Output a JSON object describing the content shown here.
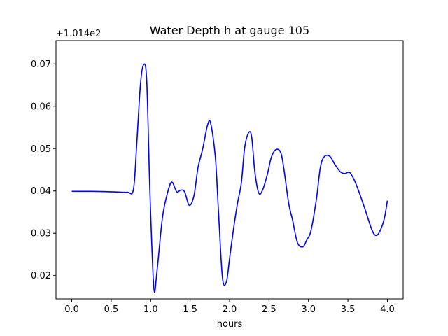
{
  "chart_data": {
    "type": "line",
    "title": "Water Depth h at gauge 105",
    "xlabel": "hours",
    "ylabel": "",
    "y_offset_label": "+1.014e2",
    "xlim": [
      -0.2,
      4.2
    ],
    "ylim": [
      0.0145,
      0.0755
    ],
    "xticks": [
      0.0,
      0.5,
      1.0,
      1.5,
      2.0,
      2.5,
      3.0,
      3.5,
      4.0
    ],
    "xtick_labels": [
      "0.0",
      "0.5",
      "1.0",
      "1.5",
      "2.0",
      "2.5",
      "3.0",
      "3.5",
      "4.0"
    ],
    "yticks": [
      0.02,
      0.03,
      0.04,
      0.05,
      0.06,
      0.07
    ],
    "ytick_labels": [
      "0.02",
      "0.03",
      "0.04",
      "0.05",
      "0.06",
      "0.07"
    ],
    "grid": false,
    "series": [
      {
        "color": "#0000ff",
        "x": [
          0.0,
          0.25,
          0.5,
          0.7,
          0.78,
          0.82,
          0.87,
          0.91,
          0.95,
          0.99,
          1.04,
          1.08,
          1.15,
          1.22,
          1.27,
          1.33,
          1.38,
          1.43,
          1.49,
          1.55,
          1.6,
          1.66,
          1.72,
          1.76,
          1.82,
          1.86,
          1.91,
          1.96,
          2.0,
          2.05,
          2.1,
          2.15,
          2.19,
          2.24,
          2.28,
          2.32,
          2.37,
          2.42,
          2.48,
          2.53,
          2.59,
          2.65,
          2.69,
          2.75,
          2.8,
          2.86,
          2.93,
          2.98,
          3.03,
          3.1,
          3.15,
          3.2,
          3.27,
          3.33,
          3.4,
          3.46,
          3.52,
          3.58,
          3.64,
          3.72,
          3.8,
          3.85,
          3.9,
          3.96,
          4.0
        ],
        "y": [
          0.0399,
          0.0399,
          0.0398,
          0.0397,
          0.0402,
          0.05,
          0.065,
          0.0698,
          0.066,
          0.04,
          0.0172,
          0.021,
          0.0338,
          0.04,
          0.0421,
          0.0398,
          0.0402,
          0.0398,
          0.0366,
          0.039,
          0.0455,
          0.05,
          0.0555,
          0.056,
          0.048,
          0.035,
          0.0195,
          0.0185,
          0.024,
          0.031,
          0.037,
          0.042,
          0.05,
          0.0537,
          0.0528,
          0.0446,
          0.0395,
          0.0403,
          0.044,
          0.048,
          0.0498,
          0.049,
          0.045,
          0.037,
          0.033,
          0.0278,
          0.0268,
          0.0285,
          0.0305,
          0.038,
          0.0455,
          0.0481,
          0.0482,
          0.0464,
          0.0446,
          0.0441,
          0.0444,
          0.0426,
          0.0398,
          0.0355,
          0.031,
          0.0295,
          0.0303,
          0.0334,
          0.0377
        ]
      }
    ]
  }
}
